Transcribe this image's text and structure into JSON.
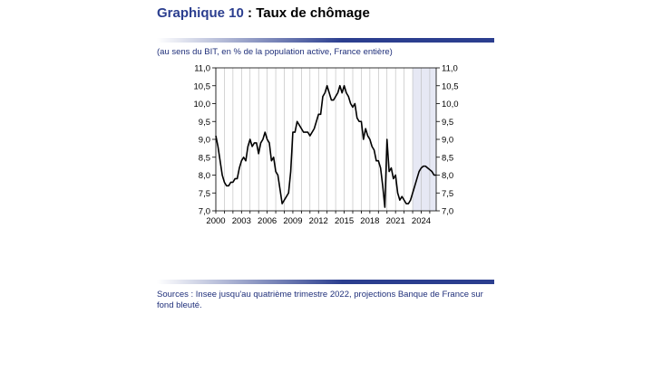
{
  "header": {
    "title_number": "Graphique 10",
    "title_text": ": Taux de chômage",
    "subtitle": "(au sens du BIT, en % de la population active, France entière)"
  },
  "footer": {
    "source": "Sources : Insee jusqu'au quatrième trimestre 2022, projections Banque de France sur fond bleuté."
  },
  "colors": {
    "title_number": "#2b3e8f",
    "rule_gradient_start": "#ffffff",
    "rule_gradient_end": "#2b3e8f",
    "projection_shading": "#e6e8f4",
    "line": "#000000"
  },
  "chart_data": {
    "type": "line",
    "title": "",
    "xlabel": "",
    "ylabel": "",
    "xlim": [
      2000,
      2025.75
    ],
    "ylim": [
      7.0,
      11.0
    ],
    "x_ticks": [
      2000,
      2003,
      2006,
      2009,
      2012,
      2015,
      2018,
      2021,
      2024
    ],
    "x_tick_labels": [
      "2000",
      "2003",
      "2006",
      "2009",
      "2012",
      "2015",
      "2018",
      "2021",
      "2024"
    ],
    "y_ticks": [
      7.0,
      7.5,
      8.0,
      8.5,
      9.0,
      9.5,
      10.0,
      10.5,
      11.0
    ],
    "y_tick_labels": [
      "7,0",
      "7,5",
      "8,0",
      "8,5",
      "9,0",
      "9,5",
      "10,0",
      "10,5",
      "11,0"
    ],
    "y_axis_both_sides": true,
    "grid": "vertical",
    "projection_start": 2023.0,
    "series": [
      {
        "x": [
          2000.0,
          2000.25,
          2000.5,
          2000.75,
          2001.0,
          2001.25,
          2001.5,
          2001.75,
          2002.0,
          2002.25,
          2002.5,
          2002.75,
          2003.0,
          2003.25,
          2003.5,
          2003.75,
          2004.0,
          2004.25,
          2004.5,
          2004.75,
          2005.0,
          2005.25,
          2005.5,
          2005.75,
          2006.0,
          2006.25,
          2006.5,
          2006.75,
          2007.0,
          2007.25,
          2007.5,
          2007.75,
          2008.0,
          2008.25,
          2008.5,
          2008.75,
          2009.0,
          2009.25,
          2009.5,
          2009.75,
          2010.0,
          2010.25,
          2010.5,
          2010.75,
          2011.0,
          2011.25,
          2011.5,
          2011.75,
          2012.0,
          2012.25,
          2012.5,
          2012.75,
          2013.0,
          2013.25,
          2013.5,
          2013.75,
          2014.0,
          2014.25,
          2014.5,
          2014.75,
          2015.0,
          2015.25,
          2015.5,
          2015.75,
          2016.0,
          2016.25,
          2016.5,
          2016.75,
          2017.0,
          2017.25,
          2017.5,
          2017.75,
          2018.0,
          2018.25,
          2018.5,
          2018.75,
          2019.0,
          2019.25,
          2019.5,
          2019.75,
          2020.0,
          2020.25,
          2020.5,
          2020.75,
          2021.0,
          2021.25,
          2021.5,
          2021.75,
          2022.0,
          2022.25,
          2022.5,
          2022.75,
          2023.0,
          2023.25,
          2023.5,
          2023.75,
          2024.0,
          2024.25,
          2024.5,
          2024.75,
          2025.0,
          2025.25,
          2025.5,
          2025.75
        ],
        "y": [
          9.1,
          8.8,
          8.4,
          8.0,
          7.8,
          7.7,
          7.7,
          7.8,
          7.8,
          7.9,
          7.9,
          8.2,
          8.4,
          8.5,
          8.4,
          8.8,
          9.0,
          8.8,
          8.9,
          8.9,
          8.6,
          8.9,
          9.0,
          9.2,
          9.0,
          8.9,
          8.4,
          8.5,
          8.1,
          8.0,
          7.6,
          7.2,
          7.3,
          7.4,
          7.5,
          8.1,
          9.2,
          9.2,
          9.5,
          9.4,
          9.3,
          9.2,
          9.2,
          9.2,
          9.1,
          9.2,
          9.3,
          9.5,
          9.7,
          9.7,
          10.2,
          10.3,
          10.5,
          10.3,
          10.1,
          10.1,
          10.2,
          10.3,
          10.5,
          10.3,
          10.5,
          10.3,
          10.2,
          10.0,
          9.9,
          10.0,
          9.6,
          9.5,
          9.5,
          9.0,
          9.3,
          9.1,
          9.0,
          8.8,
          8.7,
          8.4,
          8.4,
          8.2,
          7.7,
          7.1,
          9.0,
          8.1,
          8.2,
          7.9,
          8.0,
          7.5,
          7.3,
          7.4,
          7.3,
          7.2,
          7.2,
          7.3,
          7.5,
          7.7,
          7.9,
          8.1,
          8.2,
          8.25,
          8.25,
          8.2,
          8.15,
          8.1,
          8.0,
          8.0
        ]
      }
    ]
  }
}
